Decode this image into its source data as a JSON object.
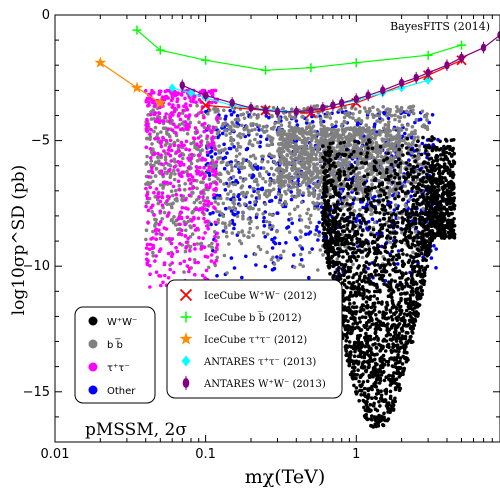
{
  "chart_data": {
    "type": "scatter",
    "title": "BayesFITS (2014)",
    "annotation": "pMSSM, 2σ",
    "xlabel": "mχ(TeV)",
    "ylabel": "log10σp^SD (pb)",
    "x_scale": "log",
    "xlim": [
      0.01,
      9
    ],
    "ylim": [
      -17,
      0
    ],
    "x_ticks": [
      {
        "value": 0.01,
        "label": "0.01"
      },
      {
        "value": 0.1,
        "label": "0.1"
      },
      {
        "value": 1,
        "label": "1"
      }
    ],
    "y_ticks": [
      {
        "value": 0,
        "label": "0"
      },
      {
        "value": -5,
        "label": "−5"
      },
      {
        "value": -10,
        "label": "−10"
      },
      {
        "value": -15,
        "label": "−15"
      }
    ],
    "scatter_legend": {
      "entries": [
        {
          "label": "W⁺W⁻",
          "color": "#000000"
        },
        {
          "label": "b b̅",
          "color": "#808080"
        },
        {
          "label": "τ⁺τ⁻",
          "color": "#ff00ff"
        },
        {
          "label": "Other",
          "color": "#0000ff"
        }
      ]
    },
    "limit_legend": {
      "entries": [
        {
          "label": "IceCube W⁺W⁻ (2012)",
          "color": "#ff0000",
          "marker": "x"
        },
        {
          "label": "IceCube b b̅ (2012)",
          "color": "#00ff00",
          "marker": "+"
        },
        {
          "label": "IceCube τ⁺τ⁻ (2012)",
          "color": "#ff8c00",
          "marker": "star"
        },
        {
          "label": "ANTARES τ⁺τ⁻ (2013)",
          "color": "#00ffff",
          "marker": "diamond"
        },
        {
          "label": "ANTARES W⁺W⁻ (2013)",
          "color": "#800080",
          "marker": "bar"
        }
      ]
    },
    "limit_series": [
      {
        "key": "icecube_bb",
        "color": "#00ff00",
        "marker": "+",
        "x": [
          0.035,
          0.05,
          0.1,
          0.25,
          0.5,
          1.0,
          3.0,
          5.0
        ],
        "y": [
          -0.6,
          -1.4,
          -1.8,
          -2.2,
          -2.1,
          -1.9,
          -1.6,
          -1.2
        ]
      },
      {
        "key": "icecube_ww",
        "color": "#ff0000",
        "marker": "x",
        "x": [
          0.1,
          0.25,
          0.5,
          1.0,
          3.0,
          5.0
        ],
        "y": [
          -3.6,
          -3.8,
          -3.9,
          -3.5,
          -2.4,
          -1.8
        ]
      },
      {
        "key": "icecube_tautau",
        "color": "#ff8c00",
        "marker": "star",
        "x": [
          0.02,
          0.035,
          0.05
        ],
        "y": [
          -1.9,
          -2.9,
          -3.5
        ]
      },
      {
        "key": "antares_tautau",
        "color": "#00ffff",
        "marker": "diamond",
        "x": [
          0.06,
          0.08,
          0.1,
          0.15,
          0.2,
          0.3,
          0.4,
          0.5,
          0.7,
          1.0,
          1.5,
          2.0,
          3.0
        ],
        "y": [
          -2.9,
          -3.1,
          -3.3,
          -3.6,
          -3.7,
          -3.8,
          -3.85,
          -3.8,
          -3.6,
          -3.4,
          -3.1,
          -2.9,
          -2.6
        ]
      },
      {
        "key": "antares_ww",
        "color": "#800080",
        "marker": "bar",
        "x": [
          0.07,
          0.1,
          0.15,
          0.2,
          0.25,
          0.3,
          0.4,
          0.5,
          0.6,
          0.7,
          0.8,
          1.0,
          1.2,
          1.5,
          2.0,
          2.5,
          3.0,
          4.0,
          5.0,
          7.0,
          9.0
        ],
        "y": [
          -2.8,
          -3.2,
          -3.5,
          -3.7,
          -3.8,
          -3.85,
          -3.85,
          -3.8,
          -3.7,
          -3.6,
          -3.5,
          -3.35,
          -3.2,
          -3.0,
          -2.7,
          -2.5,
          -2.3,
          -2.0,
          -1.7,
          -1.3,
          -0.8
        ]
      }
    ],
    "scatter_regions": [
      {
        "name": "Other",
        "color": "#0000ff",
        "count": 650,
        "x_range": [
          0.1,
          3.5
        ],
        "y_range": [
          -11.5,
          -3.8
        ]
      },
      {
        "name": "b b̅",
        "color": "#808080",
        "count": 1400,
        "x_range": [
          0.04,
          3.0
        ],
        "y_range": [
          -10.5,
          -3.6
        ]
      },
      {
        "name": "b b̅ core",
        "color": "#808080",
        "count": 900,
        "x_range": [
          0.3,
          2.0
        ],
        "y_range": [
          -7.5,
          -4.5
        ]
      },
      {
        "name": "τ⁺τ⁻",
        "color": "#ff00ff",
        "count": 500,
        "x_range": [
          0.04,
          0.12
        ],
        "y_range": [
          -11.0,
          -3.0
        ]
      },
      {
        "name": "W⁺W⁻",
        "color": "#000000",
        "count": 2600,
        "x_range": [
          0.6,
          4.5
        ],
        "y_range": [
          -16.5,
          -4.8
        ]
      }
    ]
  }
}
